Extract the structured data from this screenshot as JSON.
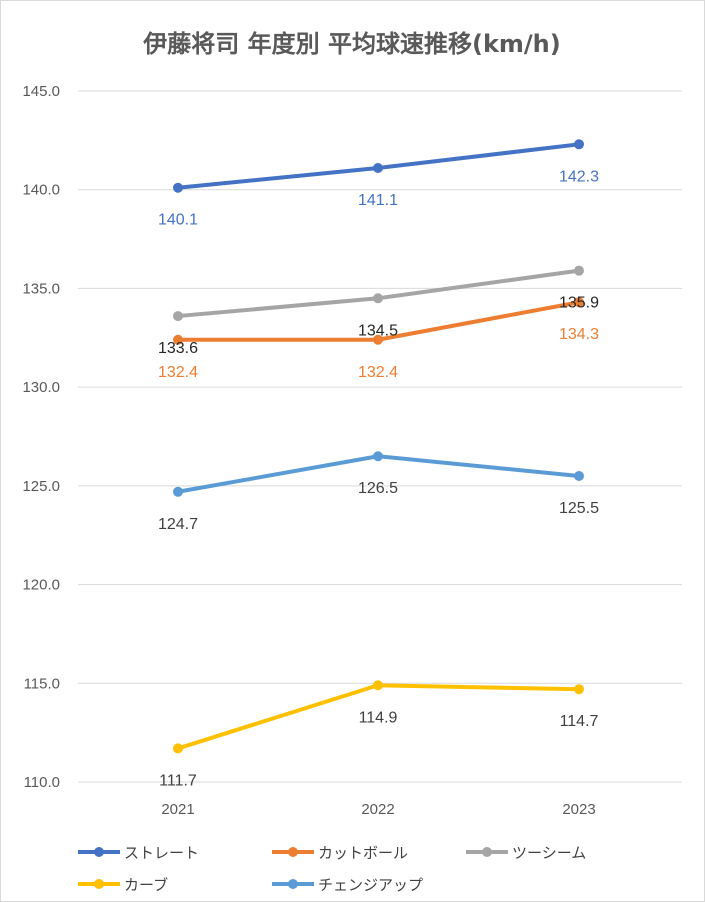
{
  "chart_data": {
    "type": "line",
    "title": "伊藤将司 年度別 平均球速推移(km/h)",
    "x": [
      "2021",
      "2022",
      "2023"
    ],
    "ylim": [
      110.0,
      145.0
    ],
    "yticks": [
      "110.0",
      "115.0",
      "120.0",
      "125.0",
      "130.0",
      "135.0",
      "140.0",
      "145.0"
    ],
    "grid": true,
    "legend_position": "bottom",
    "series": [
      {
        "name": "ストレート",
        "color": "#4472C4",
        "values": [
          140.1,
          141.1,
          142.3
        ],
        "labels": [
          "140.1",
          "141.1",
          "142.3"
        ],
        "label_color": "#4472C4",
        "label_side": [
          "below",
          "below",
          "below"
        ]
      },
      {
        "name": "カットボール",
        "color": "#ED7D31",
        "values": [
          132.4,
          132.4,
          134.3
        ],
        "labels": [
          "132.4",
          "132.4",
          "134.3"
        ],
        "label_color": "#ED7D31",
        "label_side": [
          "below",
          "below",
          "below"
        ]
      },
      {
        "name": "ツーシーム",
        "color": "#A5A5A5",
        "values": [
          133.6,
          134.5,
          135.9
        ],
        "labels": [
          "133.6",
          "134.5",
          "135.9"
        ],
        "label_color": "#262626",
        "label_side": [
          "below",
          "below",
          "below"
        ]
      },
      {
        "name": "カーブ",
        "color": "#FFC000",
        "values": [
          111.7,
          114.9,
          114.7
        ],
        "labels": [
          "111.7",
          "114.9",
          "114.7"
        ],
        "label_color": "#404040",
        "label_side": [
          "below",
          "below",
          "below"
        ]
      },
      {
        "name": "チェンジアップ",
        "color": "#5B9BD5",
        "values": [
          124.7,
          126.5,
          125.5
        ],
        "labels": [
          "124.7",
          "126.5",
          "125.5"
        ],
        "label_color": "#404040",
        "label_side": [
          "below",
          "below",
          "below"
        ]
      }
    ]
  }
}
